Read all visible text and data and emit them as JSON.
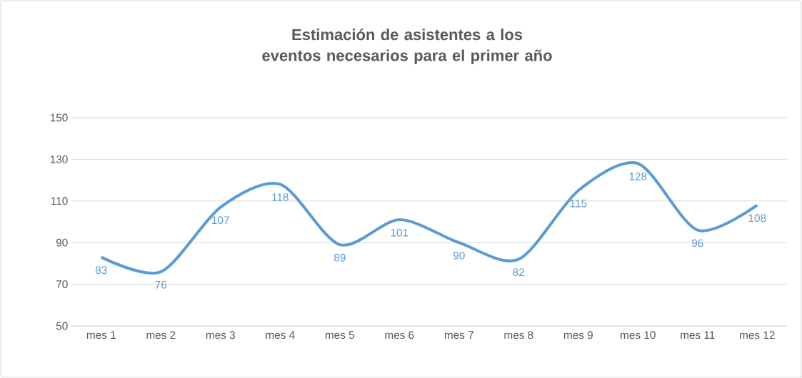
{
  "chart_data": {
    "type": "line",
    "title": "Estimación de asistentes a los eventos necesarios para el primer año",
    "categories": [
      "mes 1",
      "mes 2",
      "mes 3",
      "mes 4",
      "mes 5",
      "mes 6",
      "mes 7",
      "mes 8",
      "mes 9",
      "mes 10",
      "mes 11",
      "mes 12"
    ],
    "values": [
      83,
      76,
      107,
      118,
      89,
      101,
      90,
      82,
      115,
      128,
      96,
      108
    ],
    "color": "#5b9bd5",
    "ylim": [
      50,
      150
    ],
    "yticks": [
      50,
      70,
      90,
      110,
      130,
      150
    ],
    "grid": "y",
    "data_labels": true,
    "marker": "none",
    "line_style": "solid"
  }
}
